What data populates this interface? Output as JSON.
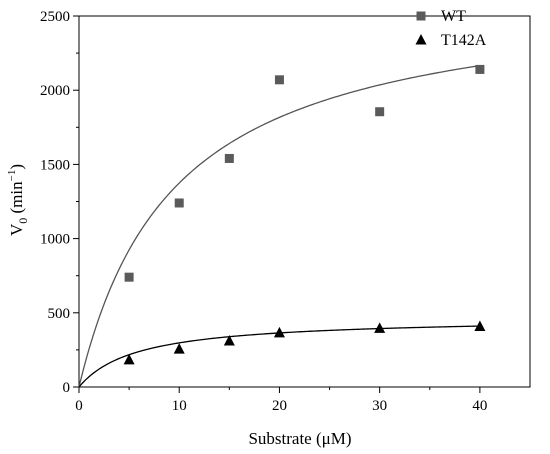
{
  "chart_data": {
    "type": "scatter",
    "xlabel": "Substrate (μM)",
    "ylabel": {
      "main": "V",
      "subscript": "0",
      "unit_open": " (min",
      "superscript": "−1",
      "unit_close": ")"
    },
    "xlim": [
      0,
      45
    ],
    "ylim": [
      0,
      2500
    ],
    "x_ticks": [
      0,
      10,
      20,
      30,
      40
    ],
    "y_ticks": [
      0,
      500,
      1000,
      1500,
      2000,
      2500
    ],
    "x_tick_labels": [
      "0",
      "10",
      "20",
      "30",
      "40"
    ],
    "y_tick_labels": [
      "0",
      "500",
      "1000",
      "1500",
      "2000",
      "2500"
    ],
    "grid": false,
    "legend": "top-right",
    "series": [
      {
        "name": "WT",
        "marker": "square",
        "marker_color": "#5a5a5a",
        "fit_color": "#555555",
        "x": [
          5,
          10,
          15,
          20,
          30,
          40
        ],
        "y": [
          740,
          1240,
          1540,
          2070,
          1855,
          2140
        ],
        "fit": {
          "model": "michaelis-menten",
          "vmax": 2680,
          "km": 9.5
        }
      },
      {
        "name": "T142A",
        "marker": "triangle",
        "marker_color": "#000000",
        "fit_color": "#000000",
        "x": [
          5,
          10,
          15,
          20,
          30,
          40
        ],
        "y": [
          183,
          255,
          310,
          365,
          395,
          408
        ],
        "fit": {
          "model": "michaelis-menten",
          "vmax": 470,
          "km": 5.8
        }
      }
    ]
  }
}
